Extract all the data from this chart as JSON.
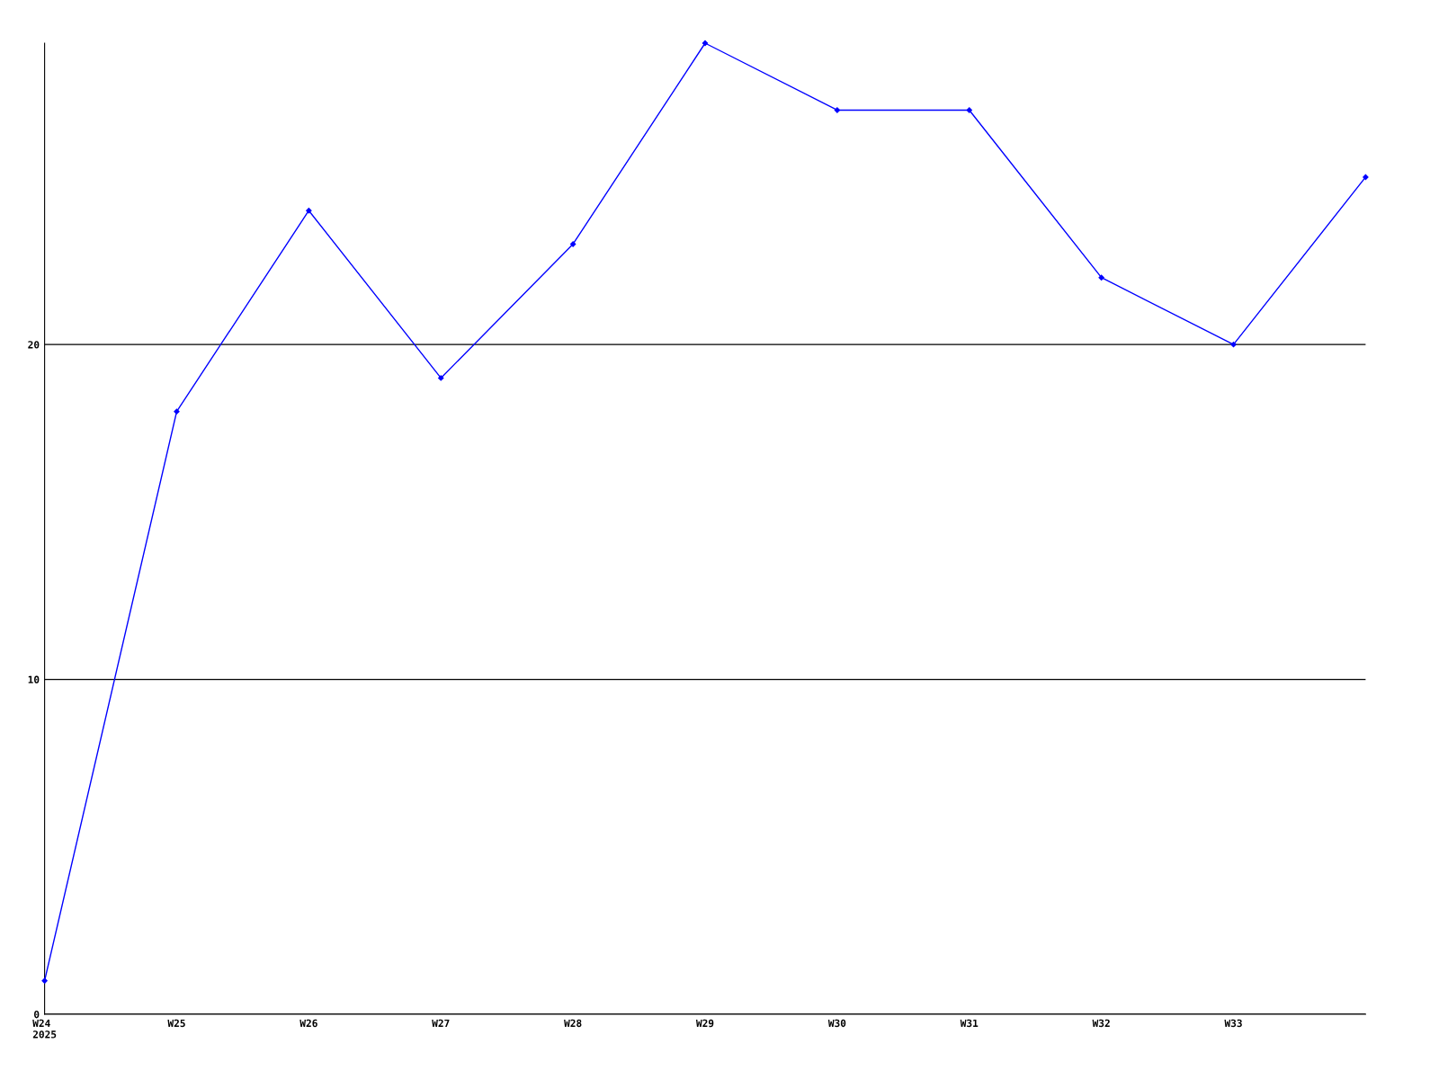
{
  "chart_data": {
    "type": "line",
    "categories": [
      "W24\n2025",
      "W25",
      "W26",
      "W27",
      "W28",
      "W29",
      "W30",
      "W31",
      "W32",
      "W33",
      null
    ],
    "series": [
      {
        "color": "#0000ff",
        "values": [
          1,
          18,
          24,
          19,
          23,
          29,
          27,
          27,
          22,
          20,
          25
        ]
      }
    ],
    "ylim": [
      0,
      29
    ],
    "yticks": [
      0,
      10,
      20
    ],
    "grid": "y",
    "marker": "diamond",
    "line_style": "solid"
  }
}
